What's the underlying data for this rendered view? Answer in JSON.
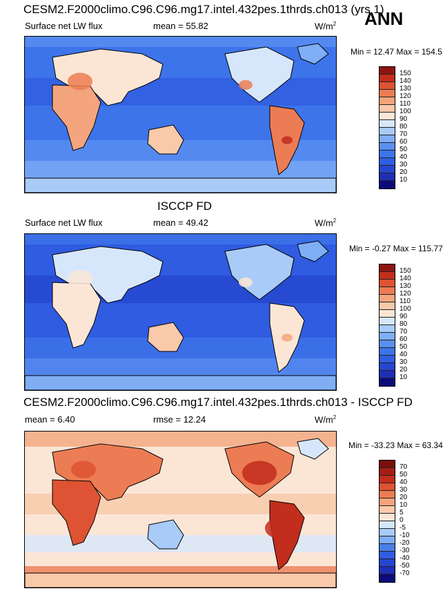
{
  "season": "ANN",
  "panels": [
    {
      "title": "CESM2.F2000climo.C96.C96.mg17.intel.432pes.1thrds.ch013 (yrs 1)",
      "left_label": "Surface net LW flux",
      "stat_label": "mean =  55.82",
      "units": "W/m",
      "units_sup": "2",
      "minmax": "Min =  12.47 Max = 154.51"
    },
    {
      "title": "ISCCP FD",
      "left_label": "Surface net LW flux",
      "stat_label": "mean =  49.42",
      "units": "W/m",
      "units_sup": "2",
      "minmax": "Min =  -0.27 Max = 115.77"
    },
    {
      "title": "CESM2.F2000climo.C96.C96.mg17.intel.432pes.1thrds.ch013 - ISCCP FD",
      "left_label": "mean =  6.40",
      "stat_label": "rmse =  12.24",
      "units": "W/m",
      "units_sup": "2",
      "minmax": "Min = -33.23 Max =  63.34"
    }
  ],
  "chart_data": [
    {
      "type": "heatmap",
      "title": "CESM2.F2000climo.C96.C96.mg17.intel.432pes.1thrds.ch013 (yrs 1)",
      "variable": "Surface net LW flux",
      "units": "W/m2",
      "mean": 55.82,
      "min": 12.47,
      "max": 154.51,
      "colorbar_levels": [
        10,
        20,
        30,
        40,
        50,
        60,
        70,
        80,
        90,
        100,
        110,
        120,
        130,
        140,
        150
      ],
      "colors": [
        "#0b0b7a",
        "#1f2fb5",
        "#2646cf",
        "#2f5ce0",
        "#3d74ea",
        "#5a90f0",
        "#7faef5",
        "#a9cbf8",
        "#d7e7fb",
        "#fbe6d6",
        "#f9c9a9",
        "#f4a57d",
        "#ec7c54",
        "#dd5333",
        "#c22d1c",
        "#8f1410"
      ]
    },
    {
      "type": "heatmap",
      "title": "ISCCP FD",
      "variable": "Surface net LW flux",
      "units": "W/m2",
      "mean": 49.42,
      "min": -0.27,
      "max": 115.77,
      "colorbar_levels": [
        10,
        20,
        30,
        40,
        50,
        60,
        70,
        80,
        90,
        100,
        110,
        120,
        130,
        140,
        150
      ],
      "colors": [
        "#0b0b7a",
        "#1f2fb5",
        "#2646cf",
        "#2f5ce0",
        "#3d74ea",
        "#5a90f0",
        "#7faef5",
        "#a9cbf8",
        "#d7e7fb",
        "#fbe6d6",
        "#f9c9a9",
        "#f4a57d",
        "#ec7c54",
        "#dd5333",
        "#c22d1c",
        "#8f1410"
      ]
    },
    {
      "type": "heatmap",
      "title": "CESM2.F2000climo.C96.C96.mg17.intel.432pes.1thrds.ch013 - ISCCP FD",
      "units": "W/m2",
      "mean": 6.4,
      "rmse": 12.24,
      "min": -33.23,
      "max": 63.34,
      "colorbar_levels": [
        -70,
        -50,
        -40,
        -30,
        -20,
        -10,
        -5,
        0,
        5,
        10,
        20,
        30,
        40,
        50,
        70
      ],
      "colors": [
        "#0b0b7a",
        "#1f2fb5",
        "#2646cf",
        "#2f5ce0",
        "#4a7fe8",
        "#7faef5",
        "#a9cbf8",
        "#d7e7fb",
        "#fbe6d6",
        "#f9c9a9",
        "#f4a57d",
        "#ec7c54",
        "#dd5333",
        "#c22d1c",
        "#a51e16",
        "#7a0f0c"
      ]
    }
  ]
}
